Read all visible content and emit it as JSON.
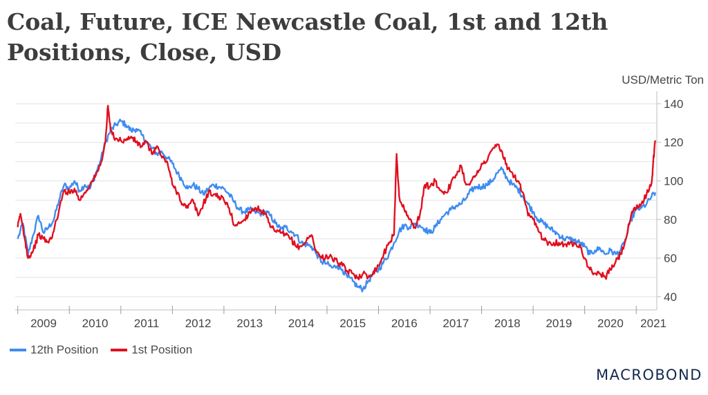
{
  "title": "Coal, Future, ICE Newcastle Coal, 1st and 12th Positions, Close, USD",
  "brand": "MACROBOND",
  "chart_data": {
    "type": "line",
    "title": "Coal, Future, ICE Newcastle Coal, 1st and 12th Positions, Close, USD",
    "ylabel": "USD/Metric Ton",
    "ylim": [
      36,
      145
    ],
    "yticks": [
      40,
      60,
      80,
      100,
      120,
      140
    ],
    "xlim": [
      2008.95,
      2021.4
    ],
    "xticks": [
      "2009",
      "2010",
      "2011",
      "2012",
      "2013",
      "2014",
      "2015",
      "2016",
      "2017",
      "2018",
      "2019",
      "2020",
      "2021"
    ],
    "grid": true,
    "legend_position": "bottom-left",
    "series": [
      {
        "name": "12th Position",
        "color": "#3f8cf0",
        "points": [
          [
            2009.0,
            70
          ],
          [
            2009.1,
            78
          ],
          [
            2009.2,
            62
          ],
          [
            2009.3,
            72
          ],
          [
            2009.4,
            82
          ],
          [
            2009.5,
            73
          ],
          [
            2009.6,
            76
          ],
          [
            2009.7,
            80
          ],
          [
            2009.8,
            90
          ],
          [
            2009.9,
            98
          ],
          [
            2010.0,
            96
          ],
          [
            2010.1,
            100
          ],
          [
            2010.2,
            95
          ],
          [
            2010.3,
            98
          ],
          [
            2010.4,
            96
          ],
          [
            2010.5,
            103
          ],
          [
            2010.6,
            110
          ],
          [
            2010.7,
            120
          ],
          [
            2010.8,
            126
          ],
          [
            2010.9,
            129
          ],
          [
            2011.0,
            131
          ],
          [
            2011.1,
            129
          ],
          [
            2011.2,
            126
          ],
          [
            2011.3,
            127
          ],
          [
            2011.4,
            124
          ],
          [
            2011.5,
            120
          ],
          [
            2011.6,
            117
          ],
          [
            2011.7,
            114
          ],
          [
            2011.8,
            115
          ],
          [
            2011.9,
            112
          ],
          [
            2012.0,
            109
          ],
          [
            2012.1,
            104
          ],
          [
            2012.2,
            100
          ],
          [
            2012.3,
            96
          ],
          [
            2012.4,
            98
          ],
          [
            2012.5,
            96
          ],
          [
            2012.6,
            93
          ],
          [
            2012.7,
            96
          ],
          [
            2012.8,
            98
          ],
          [
            2012.9,
            97
          ],
          [
            2013.0,
            96
          ],
          [
            2013.1,
            93
          ],
          [
            2013.2,
            89
          ],
          [
            2013.3,
            85
          ],
          [
            2013.4,
            84
          ],
          [
            2013.5,
            85
          ],
          [
            2013.6,
            84
          ],
          [
            2013.7,
            83
          ],
          [
            2013.8,
            84
          ],
          [
            2013.9,
            82
          ],
          [
            2014.0,
            78
          ],
          [
            2014.1,
            75
          ],
          [
            2014.2,
            76
          ],
          [
            2014.3,
            74
          ],
          [
            2014.4,
            72
          ],
          [
            2014.5,
            68
          ],
          [
            2014.6,
            67
          ],
          [
            2014.7,
            66
          ],
          [
            2014.8,
            62
          ],
          [
            2014.9,
            58
          ],
          [
            2015.0,
            57
          ],
          [
            2015.1,
            55
          ],
          [
            2015.2,
            56
          ],
          [
            2015.3,
            54
          ],
          [
            2015.4,
            50
          ],
          [
            2015.5,
            48
          ],
          [
            2015.6,
            45
          ],
          [
            2015.7,
            44
          ],
          [
            2015.8,
            48
          ],
          [
            2015.9,
            52
          ],
          [
            2016.0,
            54
          ],
          [
            2016.1,
            58
          ],
          [
            2016.2,
            62
          ],
          [
            2016.3,
            68
          ],
          [
            2016.4,
            74
          ],
          [
            2016.5,
            77
          ],
          [
            2016.6,
            76
          ],
          [
            2016.7,
            78
          ],
          [
            2016.8,
            77
          ],
          [
            2016.9,
            75
          ],
          [
            2017.0,
            73
          ],
          [
            2017.1,
            76
          ],
          [
            2017.2,
            80
          ],
          [
            2017.3,
            83
          ],
          [
            2017.4,
            85
          ],
          [
            2017.5,
            87
          ],
          [
            2017.6,
            88
          ],
          [
            2017.7,
            91
          ],
          [
            2017.8,
            95
          ],
          [
            2017.9,
            97
          ],
          [
            2018.0,
            97
          ],
          [
            2018.1,
            98
          ],
          [
            2018.2,
            100
          ],
          [
            2018.3,
            104
          ],
          [
            2018.4,
            106
          ],
          [
            2018.5,
            101
          ],
          [
            2018.6,
            98
          ],
          [
            2018.7,
            96
          ],
          [
            2018.8,
            92
          ],
          [
            2018.9,
            88
          ],
          [
            2019.0,
            84
          ],
          [
            2019.1,
            80
          ],
          [
            2019.2,
            78
          ],
          [
            2019.3,
            76
          ],
          [
            2019.4,
            74
          ],
          [
            2019.5,
            72
          ],
          [
            2019.6,
            70
          ],
          [
            2019.7,
            70
          ],
          [
            2019.8,
            69
          ],
          [
            2019.9,
            68
          ],
          [
            2020.0,
            66
          ],
          [
            2020.1,
            62
          ],
          [
            2020.2,
            64
          ],
          [
            2020.3,
            65
          ],
          [
            2020.4,
            62
          ],
          [
            2020.5,
            64
          ],
          [
            2020.6,
            62
          ],
          [
            2020.7,
            64
          ],
          [
            2020.8,
            70
          ],
          [
            2020.9,
            80
          ],
          [
            2021.0,
            85
          ],
          [
            2021.1,
            86
          ],
          [
            2021.2,
            88
          ],
          [
            2021.3,
            92
          ],
          [
            2021.37,
            94
          ]
        ]
      },
      {
        "name": "1st Position",
        "color": "#e0101f",
        "points": [
          [
            2009.0,
            76
          ],
          [
            2009.05,
            83
          ],
          [
            2009.15,
            68
          ],
          [
            2009.2,
            60
          ],
          [
            2009.3,
            64
          ],
          [
            2009.4,
            72
          ],
          [
            2009.5,
            70
          ],
          [
            2009.6,
            68
          ],
          [
            2009.7,
            74
          ],
          [
            2009.8,
            85
          ],
          [
            2009.9,
            95
          ],
          [
            2010.0,
            94
          ],
          [
            2010.1,
            96
          ],
          [
            2010.2,
            90
          ],
          [
            2010.3,
            94
          ],
          [
            2010.4,
            98
          ],
          [
            2010.5,
            102
          ],
          [
            2010.6,
            108
          ],
          [
            2010.7,
            120
          ],
          [
            2010.75,
            139
          ],
          [
            2010.8,
            126
          ],
          [
            2010.9,
            122
          ],
          [
            2011.0,
            121
          ],
          [
            2011.1,
            121
          ],
          [
            2011.2,
            123
          ],
          [
            2011.3,
            120
          ],
          [
            2011.4,
            118
          ],
          [
            2011.5,
            120
          ],
          [
            2011.6,
            114
          ],
          [
            2011.7,
            118
          ],
          [
            2011.8,
            112
          ],
          [
            2011.9,
            110
          ],
          [
            2012.0,
            98
          ],
          [
            2012.1,
            94
          ],
          [
            2012.2,
            88
          ],
          [
            2012.3,
            86
          ],
          [
            2012.4,
            90
          ],
          [
            2012.5,
            82
          ],
          [
            2012.6,
            88
          ],
          [
            2012.7,
            94
          ],
          [
            2012.8,
            93
          ],
          [
            2012.9,
            92
          ],
          [
            2013.0,
            90
          ],
          [
            2013.1,
            86
          ],
          [
            2013.2,
            77
          ],
          [
            2013.3,
            78
          ],
          [
            2013.4,
            80
          ],
          [
            2013.5,
            84
          ],
          [
            2013.6,
            86
          ],
          [
            2013.7,
            85
          ],
          [
            2013.8,
            83
          ],
          [
            2013.9,
            76
          ],
          [
            2014.0,
            74
          ],
          [
            2014.1,
            73
          ],
          [
            2014.2,
            72
          ],
          [
            2014.3,
            70
          ],
          [
            2014.4,
            66
          ],
          [
            2014.5,
            66
          ],
          [
            2014.6,
            69
          ],
          [
            2014.7,
            72
          ],
          [
            2014.8,
            63
          ],
          [
            2014.9,
            60
          ],
          [
            2015.0,
            61
          ],
          [
            2015.1,
            60
          ],
          [
            2015.2,
            58
          ],
          [
            2015.3,
            56
          ],
          [
            2015.4,
            53
          ],
          [
            2015.5,
            52
          ],
          [
            2015.6,
            50
          ],
          [
            2015.7,
            52
          ],
          [
            2015.8,
            50
          ],
          [
            2015.9,
            53
          ],
          [
            2016.0,
            56
          ],
          [
            2016.1,
            62
          ],
          [
            2016.2,
            68
          ],
          [
            2016.3,
            72
          ],
          [
            2016.35,
            114
          ],
          [
            2016.4,
            92
          ],
          [
            2016.5,
            85
          ],
          [
            2016.6,
            80
          ],
          [
            2016.7,
            76
          ],
          [
            2016.8,
            82
          ],
          [
            2016.9,
            98
          ],
          [
            2017.0,
            97
          ],
          [
            2017.1,
            100
          ],
          [
            2017.2,
            95
          ],
          [
            2017.3,
            94
          ],
          [
            2017.4,
            98
          ],
          [
            2017.5,
            103
          ],
          [
            2017.6,
            108
          ],
          [
            2017.7,
            98
          ],
          [
            2017.8,
            100
          ],
          [
            2017.9,
            103
          ],
          [
            2018.0,
            109
          ],
          [
            2018.1,
            110
          ],
          [
            2018.2,
            116
          ],
          [
            2018.3,
            119
          ],
          [
            2018.4,
            115
          ],
          [
            2018.5,
            106
          ],
          [
            2018.6,
            104
          ],
          [
            2018.7,
            100
          ],
          [
            2018.8,
            94
          ],
          [
            2018.9,
            82
          ],
          [
            2019.0,
            80
          ],
          [
            2019.1,
            74
          ],
          [
            2019.2,
            70
          ],
          [
            2019.3,
            68
          ],
          [
            2019.4,
            68
          ],
          [
            2019.5,
            68
          ],
          [
            2019.6,
            67
          ],
          [
            2019.7,
            67
          ],
          [
            2019.8,
            68
          ],
          [
            2019.9,
            67
          ],
          [
            2020.0,
            60
          ],
          [
            2020.1,
            54
          ],
          [
            2020.2,
            52
          ],
          [
            2020.3,
            52
          ],
          [
            2020.4,
            50
          ],
          [
            2020.5,
            54
          ],
          [
            2020.6,
            58
          ],
          [
            2020.7,
            62
          ],
          [
            2020.8,
            70
          ],
          [
            2020.9,
            82
          ],
          [
            2021.0,
            86
          ],
          [
            2021.1,
            88
          ],
          [
            2021.2,
            93
          ],
          [
            2021.3,
            99
          ],
          [
            2021.33,
            110
          ],
          [
            2021.37,
            121
          ]
        ]
      }
    ]
  }
}
